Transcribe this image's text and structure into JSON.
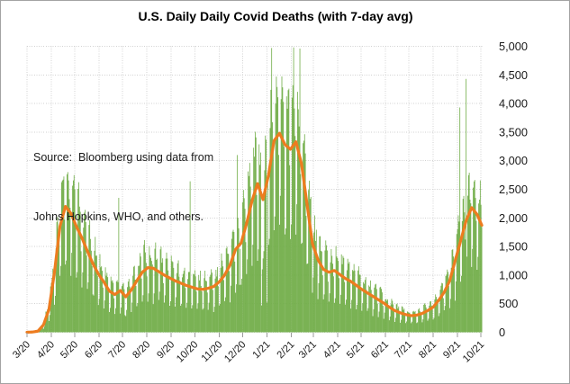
{
  "chart_data": {
    "type": "bar",
    "title": "U.S. Daily Daily Covid Deaths (with 7-day avg)",
    "source_note_line1": "Source:  Bloomberg using data from",
    "source_note_line2": "Johns Hopkins, WHO, and others.",
    "xlabel": "",
    "ylabel": "",
    "ylim": [
      0,
      5000
    ],
    "y_tick_values": [
      0,
      500,
      1000,
      1500,
      2000,
      2500,
      3000,
      3500,
      4000,
      4500,
      5000
    ],
    "y_tick_labels": [
      "0",
      "500",
      "1,000",
      "1,500",
      "2,000",
      "2,500",
      "3,000",
      "3,500",
      "4,000",
      "4,500",
      "5,000"
    ],
    "x_ticks": [
      {
        "label": "3/20",
        "day": 0
      },
      {
        "label": "4/20",
        "day": 31
      },
      {
        "label": "5/20",
        "day": 61
      },
      {
        "label": "6/20",
        "day": 92
      },
      {
        "label": "7/20",
        "day": 122
      },
      {
        "label": "8/20",
        "day": 153
      },
      {
        "label": "9/20",
        "day": 184
      },
      {
        "label": "10/20",
        "day": 214
      },
      {
        "label": "11/20",
        "day": 245
      },
      {
        "label": "12/20",
        "day": 275
      },
      {
        "label": "1/21",
        "day": 306
      },
      {
        "label": "2/21",
        "day": 337
      },
      {
        "label": "3/21",
        "day": 365
      },
      {
        "label": "4/21",
        "day": 396
      },
      {
        "label": "5/21",
        "day": 426
      },
      {
        "label": "6/21",
        "day": 457
      },
      {
        "label": "7/21",
        "day": 487
      },
      {
        "label": "8/21",
        "day": 518
      },
      {
        "label": "9/21",
        "day": 549
      },
      {
        "label": "10/21",
        "day": 579
      }
    ],
    "start_date": "2020-03-01",
    "num_days": 581,
    "grid": true,
    "legend": "none",
    "colors": {
      "bars": "#70AD47",
      "avg_line": "#ED7C1F",
      "gridline": "#d2d2d2",
      "tick": "#9b9b9b",
      "text": "#1a1a1a"
    },
    "series": [
      {
        "name": "Daily Covid deaths (bars)",
        "type": "bar",
        "color": "#70AD47",
        "note": "daily bars oscillate around 7-day avg with weekly reporting pattern",
        "dow_multipliers_sun_to_sat": [
          0.5,
          0.62,
          1.28,
          1.33,
          1.3,
          1.22,
          0.95
        ],
        "jitter_amplitude": 0.12,
        "soft_cap_start": 4200,
        "soft_cap_slope": 0.35,
        "hard_cap": 4970,
        "overrides": [
          [
            117,
            2350
          ],
          [
            125,
            300
          ],
          [
            208,
            2640
          ],
          [
            268,
            3100
          ],
          [
            271,
            830
          ],
          [
            299,
            470
          ],
          [
            300,
            1100
          ],
          [
            306,
            520
          ],
          [
            312,
            4970
          ],
          [
            340,
            4980
          ],
          [
            348,
            4960
          ],
          [
            552,
            3930
          ],
          [
            560,
            4430
          ]
        ]
      },
      {
        "name": "7-day average",
        "type": "line",
        "color": "#ED7C1F",
        "weekly_points": [
          [
            0,
            1
          ],
          [
            7,
            5
          ],
          [
            14,
            20
          ],
          [
            21,
            130
          ],
          [
            28,
            400
          ],
          [
            35,
            1050
          ],
          [
            42,
            1850
          ],
          [
            49,
            2200
          ],
          [
            56,
            2080
          ],
          [
            63,
            1850
          ],
          [
            70,
            1650
          ],
          [
            77,
            1420
          ],
          [
            84,
            1200
          ],
          [
            91,
            1020
          ],
          [
            98,
            880
          ],
          [
            105,
            720
          ],
          [
            112,
            660
          ],
          [
            119,
            730
          ],
          [
            126,
            620
          ],
          [
            133,
            740
          ],
          [
            140,
            900
          ],
          [
            147,
            1050
          ],
          [
            154,
            1130
          ],
          [
            161,
            1120
          ],
          [
            168,
            1060
          ],
          [
            175,
            1000
          ],
          [
            182,
            950
          ],
          [
            189,
            900
          ],
          [
            196,
            860
          ],
          [
            203,
            820
          ],
          [
            210,
            790
          ],
          [
            217,
            760
          ],
          [
            224,
            750
          ],
          [
            231,
            770
          ],
          [
            238,
            800
          ],
          [
            245,
            880
          ],
          [
            252,
            1000
          ],
          [
            259,
            1180
          ],
          [
            266,
            1450
          ],
          [
            273,
            1560
          ],
          [
            280,
            1900
          ],
          [
            287,
            2300
          ],
          [
            294,
            2600
          ],
          [
            301,
            2320
          ],
          [
            308,
            2750
          ],
          [
            315,
            3350
          ],
          [
            322,
            3480
          ],
          [
            329,
            3280
          ],
          [
            336,
            3200
          ],
          [
            343,
            3330
          ],
          [
            350,
            2950
          ],
          [
            357,
            2250
          ],
          [
            364,
            1550
          ],
          [
            371,
            1270
          ],
          [
            378,
            1100
          ],
          [
            385,
            1050
          ],
          [
            392,
            1080
          ],
          [
            399,
            1010
          ],
          [
            406,
            940
          ],
          [
            413,
            890
          ],
          [
            420,
            820
          ],
          [
            427,
            750
          ],
          [
            434,
            690
          ],
          [
            441,
            630
          ],
          [
            448,
            570
          ],
          [
            455,
            510
          ],
          [
            462,
            440
          ],
          [
            469,
            380
          ],
          [
            476,
            340
          ],
          [
            483,
            310
          ],
          [
            490,
            290
          ],
          [
            497,
            300
          ],
          [
            504,
            330
          ],
          [
            511,
            380
          ],
          [
            518,
            440
          ],
          [
            525,
            560
          ],
          [
            532,
            700
          ],
          [
            539,
            900
          ],
          [
            546,
            1250
          ],
          [
            553,
            1600
          ],
          [
            560,
            1950
          ],
          [
            567,
            2180
          ],
          [
            574,
            2060
          ],
          [
            581,
            1840
          ]
        ]
      }
    ]
  }
}
